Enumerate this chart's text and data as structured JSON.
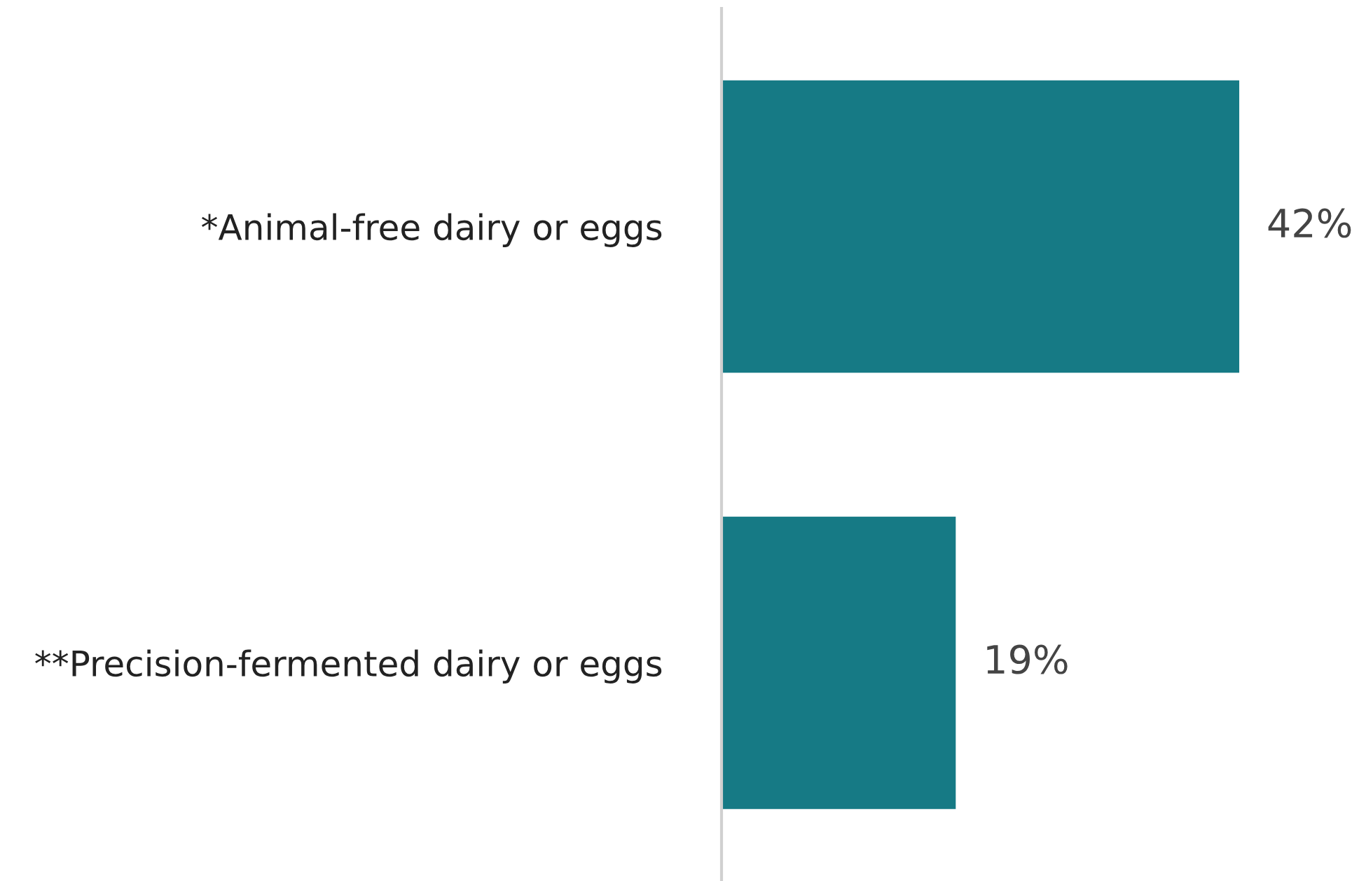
{
  "chart_data": {
    "type": "bar",
    "orientation": "horizontal",
    "categories": [
      "*Animal-free dairy or eggs",
      "**Precision-fermented dairy or eggs"
    ],
    "values": [
      42,
      19
    ],
    "color": "#167a85",
    "value_labels": [
      "42%",
      "19%"
    ],
    "tick_labels": "y",
    "grid": false,
    "legend": false
  }
}
